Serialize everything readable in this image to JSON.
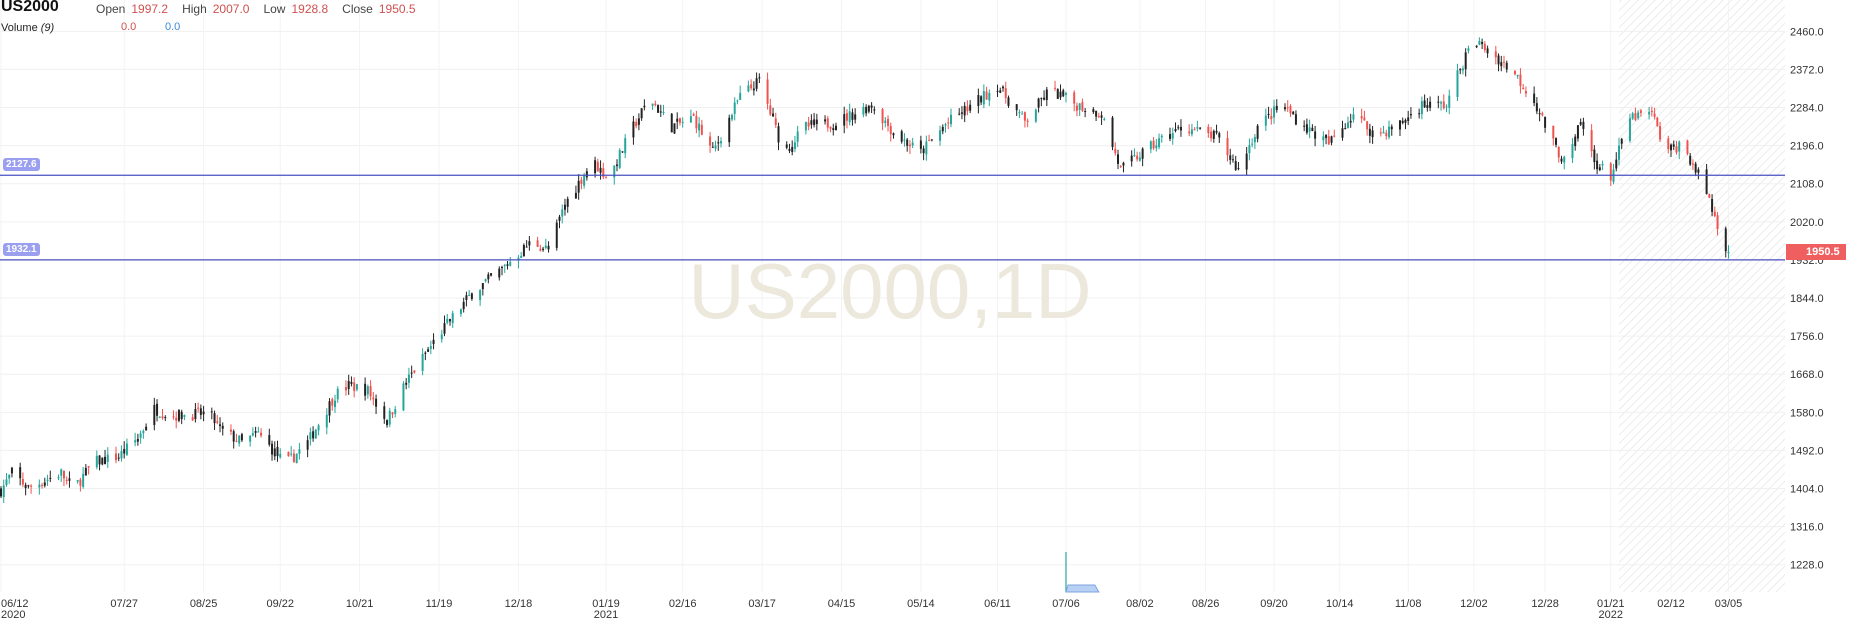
{
  "header": {
    "symbol": "US2000",
    "open_label": "Open",
    "open_value": "1997.2",
    "high_label": "High",
    "high_value": "2007.0",
    "low_label": "Low",
    "low_value": "1928.8",
    "close_label": "Close",
    "close_value": "1950.5",
    "volume_label": "Volume",
    "volume_period": "(9)",
    "volume_value_1": "0.0",
    "volume_value_2": "0.0"
  },
  "watermark": "US2000,1D",
  "colors": {
    "up": "#26a69a",
    "down": "#ef5350",
    "neutral": "#222222",
    "level_line": "#4a50c0",
    "level_label": "#9a9ff0",
    "last_price": "#ef5f5f",
    "watermark": "#ece8dc"
  },
  "chart_data": {
    "type": "candlestick",
    "y_axis": {
      "ticks": [
        1228.0,
        1316.0,
        1404.0,
        1492.0,
        1580.0,
        1668.0,
        1756.0,
        1844.0,
        1932.0,
        2020.0,
        2108.0,
        2196.0,
        2284.0,
        2372.0,
        2460.0
      ],
      "ylim": [
        1165,
        2500
      ]
    },
    "x_axis": {
      "ticks": [
        {
          "label": "06/12",
          "year": "2020",
          "day": 0
        },
        {
          "label": "07/27",
          "year": "",
          "day": 45
        },
        {
          "label": "08/25",
          "year": "",
          "day": 74
        },
        {
          "label": "09/22",
          "year": "",
          "day": 102
        },
        {
          "label": "10/21",
          "year": "",
          "day": 131
        },
        {
          "label": "11/19",
          "year": "",
          "day": 160
        },
        {
          "label": "12/18",
          "year": "",
          "day": 189
        },
        {
          "label": "01/19",
          "year": "2021",
          "day": 221
        },
        {
          "label": "02/16",
          "year": "",
          "day": 249
        },
        {
          "label": "03/17",
          "year": "",
          "day": 278
        },
        {
          "label": "04/15",
          "year": "",
          "day": 307
        },
        {
          "label": "05/14",
          "year": "",
          "day": 336
        },
        {
          "label": "06/11",
          "year": "",
          "day": 364
        },
        {
          "label": "07/06",
          "year": "",
          "day": 389
        },
        {
          "label": "08/02",
          "year": "",
          "day": 416
        },
        {
          "label": "08/26",
          "year": "",
          "day": 440
        },
        {
          "label": "09/20",
          "year": "",
          "day": 465
        },
        {
          "label": "10/14",
          "year": "",
          "day": 489
        },
        {
          "label": "11/08",
          "year": "",
          "day": 514
        },
        {
          "label": "12/02",
          "year": "",
          "day": 538
        },
        {
          "label": "12/28",
          "year": "",
          "day": 564
        },
        {
          "label": "01/21",
          "year": "2022",
          "day": 588
        },
        {
          "label": "02/12",
          "year": "",
          "day": 610
        },
        {
          "label": "03/05",
          "year": "",
          "day": 631
        }
      ],
      "xlim": [
        0,
        650
      ]
    },
    "levels": [
      {
        "value": 2127.6,
        "label": "2127.6"
      },
      {
        "value": 1932.1,
        "label": "1932.1"
      }
    ],
    "last_price": {
      "value": 1950.5,
      "label": "1950.5"
    },
    "future_region_start_day": 591,
    "anchors": [
      {
        "day": 0,
        "close": 1400
      },
      {
        "day": 4,
        "close": 1440
      },
      {
        "day": 10,
        "close": 1405
      },
      {
        "day": 22,
        "close": 1440
      },
      {
        "day": 26,
        "close": 1400
      },
      {
        "day": 34,
        "close": 1465
      },
      {
        "day": 43,
        "close": 1478
      },
      {
        "day": 50,
        "close": 1520
      },
      {
        "day": 56,
        "close": 1588
      },
      {
        "day": 62,
        "close": 1572
      },
      {
        "day": 76,
        "close": 1578
      },
      {
        "day": 80,
        "close": 1540
      },
      {
        "day": 88,
        "close": 1510
      },
      {
        "day": 94,
        "close": 1530
      },
      {
        "day": 104,
        "close": 1460
      },
      {
        "day": 112,
        "close": 1510
      },
      {
        "day": 122,
        "close": 1620
      },
      {
        "day": 127,
        "close": 1642
      },
      {
        "day": 134,
        "close": 1630
      },
      {
        "day": 141,
        "close": 1560
      },
      {
        "day": 148,
        "close": 1650
      },
      {
        "day": 160,
        "close": 1760
      },
      {
        "day": 172,
        "close": 1855
      },
      {
        "day": 182,
        "close": 1905
      },
      {
        "day": 194,
        "close": 1975
      },
      {
        "day": 200,
        "close": 1955
      },
      {
        "day": 206,
        "close": 2060
      },
      {
        "day": 216,
        "close": 2160
      },
      {
        "day": 222,
        "close": 2120
      },
      {
        "day": 231,
        "close": 2240
      },
      {
        "day": 237,
        "close": 2305
      },
      {
        "day": 245,
        "close": 2240
      },
      {
        "day": 253,
        "close": 2260
      },
      {
        "day": 260,
        "close": 2180
      },
      {
        "day": 270,
        "close": 2310
      },
      {
        "day": 277,
        "close": 2345
      },
      {
        "day": 286,
        "close": 2180
      },
      {
        "day": 294,
        "close": 2240
      },
      {
        "day": 305,
        "close": 2250
      },
      {
        "day": 318,
        "close": 2290
      },
      {
        "day": 327,
        "close": 2220
      },
      {
        "day": 336,
        "close": 2180
      },
      {
        "day": 345,
        "close": 2245
      },
      {
        "day": 357,
        "close": 2300
      },
      {
        "day": 364,
        "close": 2335
      },
      {
        "day": 374,
        "close": 2250
      },
      {
        "day": 383,
        "close": 2325
      },
      {
        "day": 393,
        "close": 2290
      },
      {
        "day": 402,
        "close": 2270
      },
      {
        "day": 409,
        "close": 2140
      },
      {
        "day": 415,
        "close": 2170
      },
      {
        "day": 424,
        "close": 2210
      },
      {
        "day": 432,
        "close": 2240
      },
      {
        "day": 444,
        "close": 2215
      },
      {
        "day": 452,
        "close": 2140
      },
      {
        "day": 459,
        "close": 2240
      },
      {
        "day": 468,
        "close": 2290
      },
      {
        "day": 476,
        "close": 2240
      },
      {
        "day": 485,
        "close": 2200
      },
      {
        "day": 494,
        "close": 2270
      },
      {
        "day": 502,
        "close": 2220
      },
      {
        "day": 510,
        "close": 2240
      },
      {
        "day": 519,
        "close": 2290
      },
      {
        "day": 528,
        "close": 2290
      },
      {
        "day": 533,
        "close": 2375
      },
      {
        "day": 538,
        "close": 2440
      },
      {
        "day": 544,
        "close": 2410
      },
      {
        "day": 552,
        "close": 2370
      },
      {
        "day": 560,
        "close": 2300
      },
      {
        "day": 567,
        "close": 2200
      },
      {
        "day": 572,
        "close": 2150
      },
      {
        "day": 577,
        "close": 2250
      },
      {
        "day": 582,
        "close": 2160
      },
      {
        "day": 588,
        "close": 2125
      },
      {
        "day": 595,
        "close": 2260
      },
      {
        "day": 603,
        "close": 2270
      },
      {
        "day": 608,
        "close": 2180
      },
      {
        "day": 614,
        "close": 2200
      },
      {
        "day": 619,
        "close": 2140
      },
      {
        "day": 623,
        "close": 2090
      },
      {
        "day": 627,
        "close": 2010
      },
      {
        "day": 631,
        "close": 1950
      }
    ],
    "volume": {
      "spike_day": 389,
      "spike_height": 1.0,
      "area_start_day": 389,
      "area_end_day": 401,
      "area_height": 0.15
    }
  }
}
